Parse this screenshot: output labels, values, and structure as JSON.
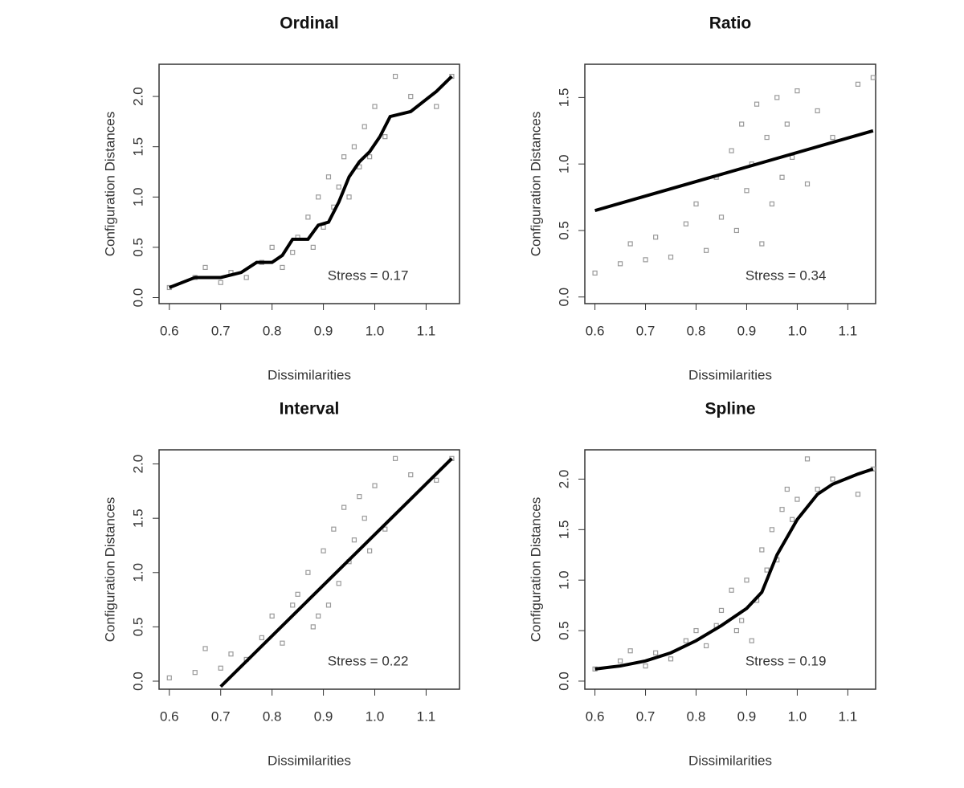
{
  "chart_data": [
    {
      "type": "scatter",
      "title": "Ordinal",
      "xlabel": "Dissimilarities",
      "ylabel": "Configuration Distances",
      "annotation": "Stress = 0.17",
      "xlim": [
        0.58,
        1.165
      ],
      "ylim": [
        -0.06,
        2.32
      ],
      "xticks": [
        0.6,
        0.7,
        0.8,
        0.9,
        {
          "value": 1,
          "label": "1.0"
        },
        1.1
      ],
      "yticks": [
        {
          "value": 0,
          "label": "0.0"
        },
        0.5,
        {
          "value": 1,
          "label": "1.0"
        },
        1.5,
        {
          "value": 2,
          "label": "2.0"
        }
      ],
      "point_color": "#9a9a9a",
      "fit_color": "#000000",
      "points": {
        "x": [
          0.6,
          0.65,
          0.67,
          0.7,
          0.72,
          0.75,
          0.78,
          0.8,
          0.82,
          0.84,
          0.85,
          0.87,
          0.88,
          0.89,
          0.9,
          0.91,
          0.92,
          0.93,
          0.94,
          0.95,
          0.96,
          0.97,
          0.98,
          0.99,
          1.0,
          1.02,
          1.04,
          1.07,
          1.12,
          1.15
        ],
        "y": [
          0.1,
          0.2,
          0.3,
          0.15,
          0.25,
          0.2,
          0.35,
          0.5,
          0.3,
          0.45,
          0.6,
          0.8,
          0.5,
          1.0,
          0.7,
          1.2,
          0.9,
          1.1,
          1.4,
          1.0,
          1.5,
          1.3,
          1.7,
          1.4,
          1.9,
          1.6,
          2.2,
          2.0,
          1.9,
          2.2
        ]
      },
      "fit": {
        "x": [
          0.6,
          0.65,
          0.7,
          0.74,
          0.77,
          0.8,
          0.82,
          0.84,
          0.87,
          0.89,
          0.91,
          0.93,
          0.95,
          0.97,
          0.99,
          1.01,
          1.03,
          1.07,
          1.12,
          1.15
        ],
        "y": [
          0.1,
          0.2,
          0.2,
          0.25,
          0.35,
          0.35,
          0.42,
          0.58,
          0.58,
          0.72,
          0.75,
          0.95,
          1.2,
          1.35,
          1.45,
          1.6,
          1.8,
          1.85,
          2.05,
          2.2
        ]
      }
    },
    {
      "type": "scatter",
      "title": "Ratio",
      "xlabel": "Dissimilarities",
      "ylabel": "Configuration Distances",
      "annotation": "Stress = 0.34",
      "xlim": [
        0.58,
        1.155
      ],
      "ylim": [
        -0.05,
        1.75
      ],
      "xticks": [
        0.6,
        0.7,
        0.8,
        0.9,
        {
          "value": 1,
          "label": "1.0"
        },
        1.1
      ],
      "yticks": [
        {
          "value": 0,
          "label": "0.0"
        },
        0.5,
        {
          "value": 1,
          "label": "1.0"
        },
        1.5
      ],
      "point_color": "#9a9a9a",
      "fit_color": "#000000",
      "points": {
        "x": [
          0.6,
          0.65,
          0.67,
          0.7,
          0.72,
          0.75,
          0.78,
          0.8,
          0.82,
          0.84,
          0.85,
          0.87,
          0.88,
          0.89,
          0.9,
          0.91,
          0.92,
          0.93,
          0.94,
          0.95,
          0.96,
          0.97,
          0.98,
          0.99,
          1.0,
          1.02,
          1.04,
          1.07,
          1.12,
          1.15
        ],
        "y": [
          0.18,
          0.25,
          0.4,
          0.28,
          0.45,
          0.3,
          0.55,
          0.7,
          0.35,
          0.9,
          0.6,
          1.1,
          0.5,
          1.3,
          0.8,
          1.0,
          1.45,
          0.4,
          1.2,
          0.7,
          1.5,
          0.9,
          1.3,
          1.05,
          1.55,
          0.85,
          1.4,
          1.2,
          1.6,
          1.65
        ]
      },
      "fit": {
        "x": [
          0.6,
          1.15
        ],
        "y": [
          0.65,
          1.25
        ]
      }
    },
    {
      "type": "scatter",
      "title": "Interval",
      "xlabel": "Dissimilarities",
      "ylabel": "Configuration Distances",
      "annotation": "Stress = 0.22",
      "xlim": [
        0.58,
        1.165
      ],
      "ylim": [
        -0.074,
        2.13
      ],
      "xticks": [
        0.6,
        0.7,
        0.8,
        0.9,
        {
          "value": 1,
          "label": "1.0"
        },
        1.1
      ],
      "yticks": [
        {
          "value": 0,
          "label": "0.0"
        },
        0.5,
        {
          "value": 1,
          "label": "1.0"
        },
        1.5,
        {
          "value": 2,
          "label": "2.0"
        }
      ],
      "point_color": "#9a9a9a",
      "fit_color": "#000000",
      "points": {
        "x": [
          0.6,
          0.65,
          0.67,
          0.7,
          0.72,
          0.75,
          0.78,
          0.8,
          0.82,
          0.84,
          0.85,
          0.87,
          0.88,
          0.89,
          0.9,
          0.91,
          0.92,
          0.93,
          0.94,
          0.95,
          0.96,
          0.97,
          0.98,
          0.99,
          1.0,
          1.02,
          1.04,
          1.07,
          1.12,
          1.15
        ],
        "y": [
          0.03,
          0.08,
          0.3,
          0.12,
          0.25,
          0.2,
          0.4,
          0.6,
          0.35,
          0.7,
          0.8,
          1.0,
          0.5,
          0.6,
          1.2,
          0.7,
          1.4,
          0.9,
          1.6,
          1.1,
          1.3,
          1.7,
          1.5,
          1.2,
          1.8,
          1.4,
          2.05,
          1.9,
          1.85,
          2.05
        ]
      },
      "fit": {
        "x": [
          0.7,
          1.15
        ],
        "y": [
          -0.05,
          2.05
        ]
      }
    },
    {
      "type": "scatter",
      "title": "Spline",
      "xlabel": "Dissimilarities",
      "ylabel": "Configuration Distances",
      "annotation": "Stress = 0.19",
      "xlim": [
        0.58,
        1.155
      ],
      "ylim": [
        -0.08,
        2.29
      ],
      "xticks": [
        0.6,
        0.7,
        0.8,
        0.9,
        {
          "value": 1,
          "label": "1.0"
        },
        1.1
      ],
      "yticks": [
        {
          "value": 0,
          "label": "0.0"
        },
        0.5,
        {
          "value": 1,
          "label": "1.0"
        },
        1.5,
        {
          "value": 2,
          "label": "2.0"
        }
      ],
      "point_color": "#9a9a9a",
      "fit_color": "#000000",
      "points": {
        "x": [
          0.6,
          0.65,
          0.67,
          0.7,
          0.72,
          0.75,
          0.78,
          0.8,
          0.82,
          0.84,
          0.85,
          0.87,
          0.88,
          0.89,
          0.9,
          0.91,
          0.92,
          0.93,
          0.94,
          0.95,
          0.96,
          0.97,
          0.98,
          0.99,
          1.0,
          1.02,
          1.04,
          1.07,
          1.12,
          1.15
        ],
        "y": [
          0.12,
          0.2,
          0.3,
          0.15,
          0.28,
          0.22,
          0.4,
          0.5,
          0.35,
          0.55,
          0.7,
          0.9,
          0.5,
          0.6,
          1.0,
          0.4,
          0.8,
          1.3,
          1.1,
          1.5,
          1.2,
          1.7,
          1.9,
          1.6,
          1.8,
          2.2,
          1.9,
          2.0,
          1.85,
          2.1
        ]
      },
      "fit": {
        "x": [
          0.6,
          0.65,
          0.7,
          0.75,
          0.8,
          0.85,
          0.9,
          0.93,
          0.96,
          1.0,
          1.04,
          1.07,
          1.12,
          1.15
        ],
        "y": [
          0.12,
          0.15,
          0.2,
          0.28,
          0.4,
          0.55,
          0.72,
          0.88,
          1.25,
          1.6,
          1.85,
          1.95,
          2.05,
          2.1
        ]
      }
    }
  ]
}
